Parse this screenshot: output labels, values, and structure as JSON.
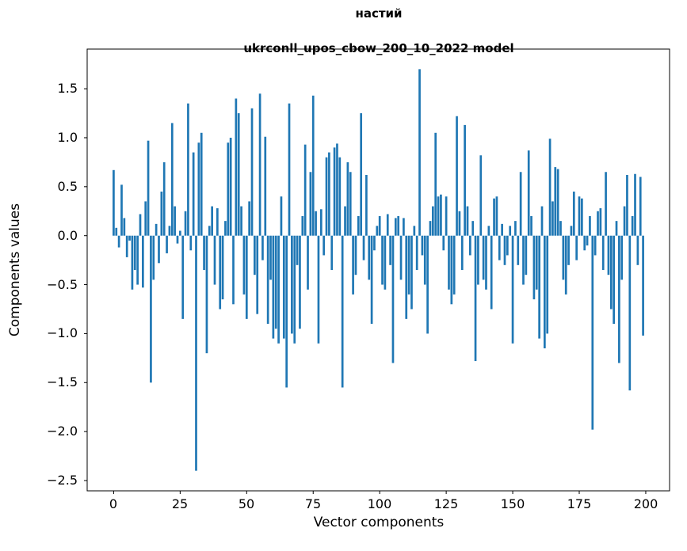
{
  "title": {
    "line1": "настий",
    "line2": "ukrconll_upos_cbow_200_10_2022 model"
  },
  "axes": {
    "xlabel": "Vector components",
    "ylabel": "Components values"
  },
  "chart_data": {
    "type": "bar",
    "title": "настий\nukrconll_upos_cbow_200_10_2022 model",
    "xlabel": "Vector components",
    "ylabel": "Components values",
    "bar_color": "#1f77b4",
    "grid": false,
    "legend": "none",
    "xlim": [
      -9.95,
      208.95
    ],
    "ylim": [
      -2.605,
      1.905
    ],
    "x_ticks": [
      0,
      25,
      50,
      75,
      100,
      125,
      150,
      175,
      200
    ],
    "y_ticks": [
      -2.5,
      -2.0,
      -1.5,
      -1.0,
      -0.5,
      0.0,
      0.5,
      1.0,
      1.5
    ],
    "y_tick_labels": [
      "−2.5",
      "−2.0",
      "−1.5",
      "−1.0",
      "−0.5",
      "0.0",
      "0.5",
      "1.0",
      "1.5"
    ],
    "x_start": 0,
    "bar_width": 0.8,
    "values": [
      0.67,
      0.08,
      -0.12,
      0.52,
      0.18,
      -0.22,
      -0.05,
      -0.55,
      -0.35,
      -0.5,
      0.22,
      -0.53,
      0.35,
      0.97,
      -1.5,
      -0.45,
      0.12,
      -0.28,
      0.45,
      0.75,
      -0.18,
      0.1,
      1.15,
      0.3,
      -0.08,
      0.05,
      -0.85,
      0.25,
      1.35,
      -0.15,
      0.85,
      -2.4,
      0.95,
      1.05,
      -0.35,
      -1.2,
      0.1,
      0.3,
      -0.5,
      0.28,
      -0.75,
      -0.65,
      0.15,
      0.95,
      1.0,
      -0.7,
      1.4,
      1.25,
      0.3,
      -0.6,
      -0.85,
      0.35,
      1.3,
      -0.4,
      -0.8,
      1.45,
      -0.25,
      1.01,
      -0.9,
      -0.45,
      -1.05,
      -0.95,
      -1.1,
      0.4,
      -1.05,
      -1.55,
      1.35,
      -1.0,
      -1.1,
      -0.3,
      -0.95,
      0.2,
      0.93,
      -0.55,
      0.65,
      1.43,
      0.25,
      -1.1,
      0.27,
      -0.2,
      0.8,
      0.85,
      -0.35,
      0.9,
      0.94,
      0.8,
      -1.55,
      0.3,
      0.75,
      0.65,
      -0.6,
      -0.4,
      0.2,
      1.25,
      -0.25,
      0.62,
      -0.45,
      -0.9,
      -0.15,
      0.1,
      0.2,
      -0.5,
      -0.55,
      0.22,
      -0.3,
      -1.3,
      0.18,
      0.2,
      -0.45,
      0.18,
      -0.85,
      -0.6,
      -0.75,
      0.1,
      -0.35,
      1.7,
      -0.2,
      -0.5,
      -1.0,
      0.15,
      0.3,
      1.05,
      0.4,
      0.42,
      -0.15,
      0.4,
      -0.55,
      -0.7,
      -0.6,
      1.22,
      0.25,
      -0.35,
      1.13,
      0.3,
      -0.2,
      0.15,
      -1.28,
      -0.5,
      0.82,
      -0.45,
      -0.55,
      0.1,
      -0.75,
      0.38,
      0.4,
      -0.25,
      0.12,
      -0.3,
      -0.2,
      0.1,
      -1.1,
      0.15,
      -0.3,
      0.65,
      -0.5,
      -0.4,
      0.87,
      0.2,
      -0.65,
      -0.55,
      -1.05,
      0.3,
      -1.15,
      -1.0,
      0.99,
      0.35,
      0.7,
      0.68,
      0.15,
      -0.45,
      -0.6,
      -0.3,
      0.1,
      0.45,
      -0.25,
      0.4,
      0.38,
      -0.15,
      -0.1,
      0.2,
      -1.98,
      -0.2,
      0.25,
      0.28,
      -0.35,
      0.65,
      -0.4,
      -0.75,
      -0.9,
      0.15,
      -1.3,
      -0.45,
      0.3,
      0.62,
      -1.58,
      0.2,
      0.63,
      -0.3,
      0.6,
      -1.02
    ]
  }
}
